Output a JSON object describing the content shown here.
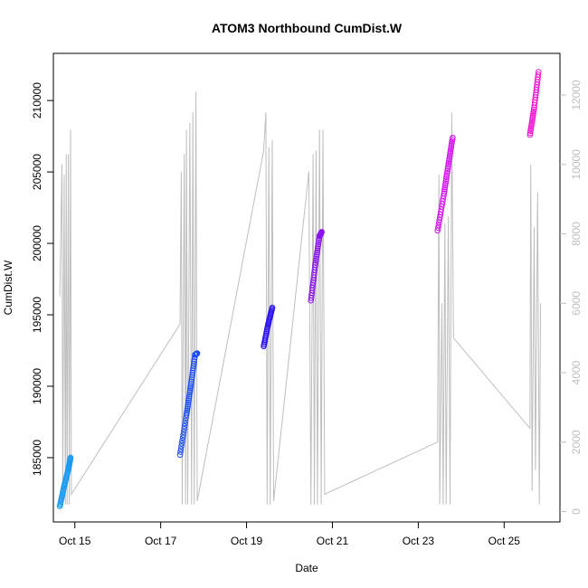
{
  "chart_data": {
    "type": "scatter",
    "title": "ATOM3 Northbound CumDist.W",
    "xlabel": "Date",
    "ylabel": "CumDist.W",
    "x_tick_labels": [
      "Oct 15",
      "Oct 17",
      "Oct 19",
      "Oct 21",
      "Oct 23",
      "Oct 25"
    ],
    "x_ticks_days": [
      15,
      17,
      19,
      21,
      23,
      25
    ],
    "xlim_days": [
      14.5,
      26.3
    ],
    "y_ticks": [
      185000,
      190000,
      195000,
      200000,
      205000,
      210000
    ],
    "y_tick_labels": [
      "185000",
      "190000",
      "195000",
      "200000",
      "205000",
      "210000"
    ],
    "ylim": [
      180500,
      213300
    ],
    "y2_ticks": [
      0,
      2000,
      4000,
      6000,
      8000,
      10000,
      12000
    ],
    "y2_tick_labels": [
      "0",
      "2000",
      "4000",
      "6000",
      "8000",
      "10000",
      "12000"
    ],
    "y2lim": [
      -300,
      13200
    ],
    "grid": false,
    "series": [
      {
        "color": "#1e9bf0",
        "points": [
          [
            14.65,
            181600
          ],
          [
            14.75,
            183000
          ],
          [
            14.85,
            184200
          ],
          [
            14.9,
            185000
          ]
        ]
      },
      {
        "color": "#1e50f0",
        "points": [
          [
            17.45,
            185200
          ],
          [
            17.6,
            188000
          ],
          [
            17.7,
            190000
          ],
          [
            17.8,
            192200
          ],
          [
            17.85,
            192300
          ]
        ]
      },
      {
        "color": "#2d14f0",
        "points": [
          [
            19.4,
            192800
          ],
          [
            19.5,
            194300
          ],
          [
            19.6,
            195500
          ]
        ]
      },
      {
        "color": "#8c14f0",
        "points": [
          [
            20.5,
            196000
          ],
          [
            20.6,
            198500
          ],
          [
            20.7,
            200500
          ],
          [
            20.75,
            200800
          ]
        ]
      },
      {
        "color": "#d214f0",
        "points": [
          [
            23.45,
            200900
          ],
          [
            23.6,
            203500
          ],
          [
            23.7,
            205500
          ],
          [
            23.8,
            207400
          ]
        ]
      },
      {
        "color": "#f014d2",
        "points": [
          [
            25.6,
            207600
          ],
          [
            25.7,
            209500
          ],
          [
            25.8,
            212000
          ]
        ]
      }
    ],
    "secondary_line": {
      "color": "#bebebe",
      "points": [
        [
          14.65,
          6200
        ],
        [
          14.7,
          10000
        ],
        [
          14.72,
          200
        ],
        [
          14.75,
          9700
        ],
        [
          14.78,
          200
        ],
        [
          14.8,
          10300
        ],
        [
          14.82,
          200
        ],
        [
          14.85,
          10300
        ],
        [
          14.87,
          200
        ],
        [
          14.9,
          11000
        ],
        [
          14.92,
          500
        ],
        [
          17.45,
          5400
        ],
        [
          17.48,
          9800
        ],
        [
          17.5,
          200
        ],
        [
          17.55,
          10300
        ],
        [
          17.58,
          200
        ],
        [
          17.6,
          11000
        ],
        [
          17.63,
          200
        ],
        [
          17.68,
          11200
        ],
        [
          17.72,
          200
        ],
        [
          17.75,
          11500
        ],
        [
          17.78,
          200
        ],
        [
          17.82,
          12100
        ],
        [
          17.85,
          300
        ],
        [
          19.4,
          10400
        ],
        [
          19.45,
          11500
        ],
        [
          19.48,
          200
        ],
        [
          19.52,
          10500
        ],
        [
          19.55,
          200
        ],
        [
          19.6,
          10700
        ],
        [
          19.63,
          300
        ],
        [
          20.45,
          9800
        ],
        [
          20.5,
          200
        ],
        [
          20.55,
          10300
        ],
        [
          20.58,
          200
        ],
        [
          20.62,
          10400
        ],
        [
          20.65,
          200
        ],
        [
          20.7,
          11000
        ],
        [
          20.74,
          200
        ],
        [
          20.78,
          11000
        ],
        [
          20.82,
          500
        ],
        [
          23.45,
          2000
        ],
        [
          23.48,
          9700
        ],
        [
          23.5,
          200
        ],
        [
          23.55,
          6000
        ],
        [
          23.58,
          200
        ],
        [
          23.62,
          8300
        ],
        [
          23.65,
          200
        ],
        [
          23.7,
          8500
        ],
        [
          23.74,
          200
        ],
        [
          23.78,
          11500
        ],
        [
          23.82,
          5000
        ],
        [
          25.6,
          2400
        ],
        [
          25.62,
          10000
        ],
        [
          25.65,
          600
        ],
        [
          25.7,
          8200
        ],
        [
          25.73,
          1200
        ],
        [
          25.78,
          9200
        ],
        [
          25.82,
          200
        ],
        [
          25.85,
          6000
        ]
      ]
    }
  }
}
